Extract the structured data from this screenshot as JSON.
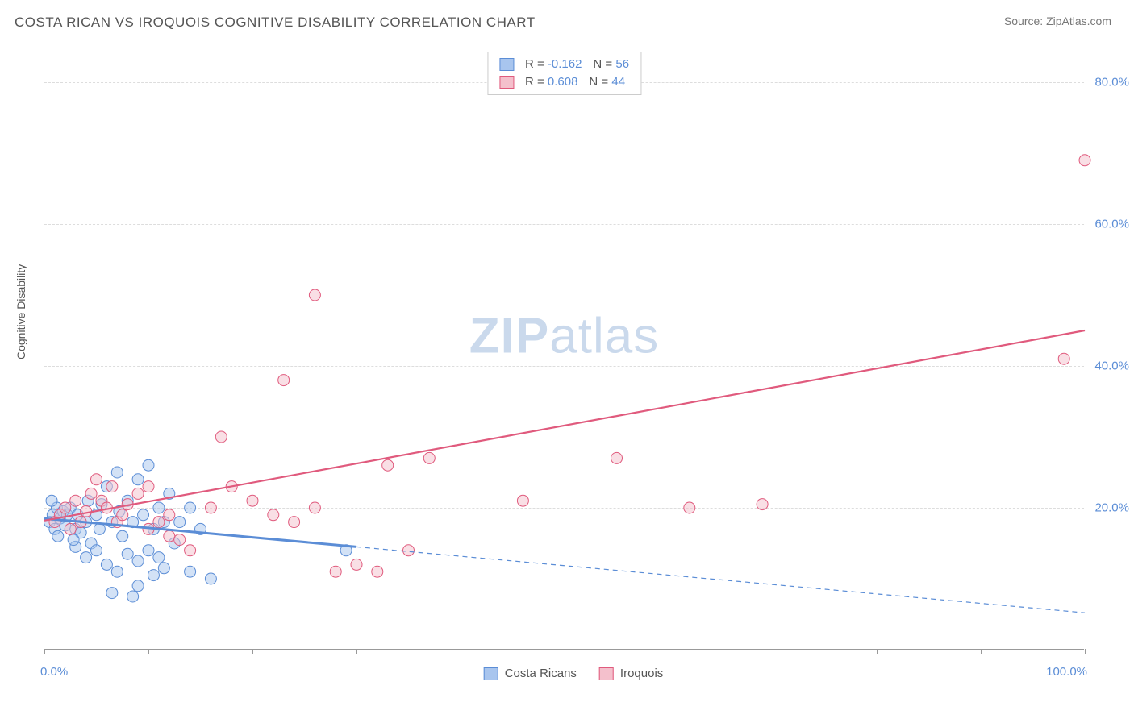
{
  "title": "COSTA RICAN VS IROQUOIS COGNITIVE DISABILITY CORRELATION CHART",
  "source": "Source: ZipAtlas.com",
  "y_axis_label": "Cognitive Disability",
  "watermark": {
    "bold": "ZIP",
    "rest": "atlas"
  },
  "chart": {
    "type": "scatter",
    "xlim": [
      0,
      100
    ],
    "ylim": [
      0,
      85
    ],
    "y_gridlines": [
      20,
      40,
      60,
      80
    ],
    "y_tick_labels": [
      "20.0%",
      "40.0%",
      "60.0%",
      "80.0%"
    ],
    "x_tick_labels": {
      "min": "0.0%",
      "max": "100.0%"
    },
    "x_tick_positions": [
      0,
      10,
      20,
      30,
      40,
      50,
      60,
      70,
      80,
      90,
      100
    ],
    "grid_color": "#dddddd",
    "axis_color": "#999999",
    "background_color": "#ffffff",
    "marker_radius": 7,
    "marker_opacity": 0.5,
    "series": [
      {
        "name": "Costa Ricans",
        "color_fill": "#a8c5ee",
        "color_stroke": "#5b8dd6",
        "r": -0.162,
        "n": 56,
        "regression": {
          "solid": {
            "x1": 0,
            "y1": 18.5,
            "x2": 30,
            "y2": 14.5
          },
          "dashed": {
            "x1": 30,
            "y1": 14.5,
            "x2": 100,
            "y2": 5.2
          },
          "line_width_solid": 3,
          "line_width_dashed": 1.2
        },
        "points": [
          [
            0.5,
            18
          ],
          [
            0.8,
            19
          ],
          [
            1,
            17
          ],
          [
            1.2,
            20
          ],
          [
            1.5,
            18.5
          ],
          [
            1.8,
            19.5
          ],
          [
            2,
            17.5
          ],
          [
            0.7,
            21
          ],
          [
            1.3,
            16
          ],
          [
            2.2,
            19
          ],
          [
            2.5,
            20
          ],
          [
            3,
            17
          ],
          [
            3.2,
            19
          ],
          [
            3.5,
            16.5
          ],
          [
            4,
            18
          ],
          [
            4.2,
            21
          ],
          [
            4.5,
            15
          ],
          [
            5,
            19
          ],
          [
            5.3,
            17
          ],
          [
            5.5,
            20.5
          ],
          [
            6,
            23
          ],
          [
            6.5,
            18
          ],
          [
            7,
            25
          ],
          [
            7.2,
            19.5
          ],
          [
            7.5,
            16
          ],
          [
            8,
            21
          ],
          [
            8.5,
            18
          ],
          [
            9,
            24
          ],
          [
            9.5,
            19
          ],
          [
            10,
            26
          ],
          [
            10.5,
            17
          ],
          [
            11,
            20
          ],
          [
            11.5,
            18
          ],
          [
            12,
            22
          ],
          [
            4,
            13
          ],
          [
            5,
            14
          ],
          [
            6,
            12
          ],
          [
            7,
            11
          ],
          [
            8,
            13.5
          ],
          [
            9,
            12.5
          ],
          [
            10,
            14
          ],
          [
            11,
            13
          ],
          [
            3,
            14.5
          ],
          [
            2.8,
            15.5
          ],
          [
            14,
            11
          ],
          [
            16,
            10
          ],
          [
            6.5,
            8
          ],
          [
            8.5,
            7.5
          ],
          [
            13,
            18
          ],
          [
            14,
            20
          ],
          [
            15,
            17
          ],
          [
            12.5,
            15
          ],
          [
            9,
            9
          ],
          [
            10.5,
            10.5
          ],
          [
            11.5,
            11.5
          ],
          [
            29,
            14
          ]
        ]
      },
      {
        "name": "Iroquois",
        "color_fill": "#f4c0cc",
        "color_stroke": "#e05a7d",
        "r": 0.608,
        "n": 44,
        "regression": {
          "solid": {
            "x1": 0,
            "y1": 18.2,
            "x2": 100,
            "y2": 45
          },
          "line_width_solid": 2.2
        },
        "points": [
          [
            1,
            18
          ],
          [
            1.5,
            19
          ],
          [
            2,
            20
          ],
          [
            2.5,
            17
          ],
          [
            3,
            21
          ],
          [
            3.5,
            18
          ],
          [
            4,
            19.5
          ],
          [
            4.5,
            22
          ],
          [
            5,
            24
          ],
          [
            5.5,
            21
          ],
          [
            6,
            20
          ],
          [
            6.5,
            23
          ],
          [
            7,
            18
          ],
          [
            7.5,
            19
          ],
          [
            8,
            20.5
          ],
          [
            9,
            22
          ],
          [
            10,
            17
          ],
          [
            11,
            18
          ],
          [
            12,
            16
          ],
          [
            13,
            15.5
          ],
          [
            14,
            14
          ],
          [
            16,
            20
          ],
          [
            18,
            23
          ],
          [
            17,
            30
          ],
          [
            23,
            38
          ],
          [
            26,
            50
          ],
          [
            20,
            21
          ],
          [
            22,
            19
          ],
          [
            24,
            18
          ],
          [
            26,
            20
          ],
          [
            28,
            11
          ],
          [
            30,
            12
          ],
          [
            32,
            11
          ],
          [
            33,
            26
          ],
          [
            35,
            14
          ],
          [
            37,
            27
          ],
          [
            46,
            21
          ],
          [
            55,
            27
          ],
          [
            62,
            20
          ],
          [
            69,
            20.5
          ],
          [
            98,
            41
          ],
          [
            100,
            69
          ],
          [
            10,
            23
          ],
          [
            12,
            19
          ]
        ]
      }
    ]
  },
  "legend_top": {
    "rows": [
      {
        "swatch_fill": "#a8c5ee",
        "swatch_stroke": "#5b8dd6",
        "r_label": "R =",
        "r_val": "-0.162",
        "n_label": "N =",
        "n_val": "56"
      },
      {
        "swatch_fill": "#f4c0cc",
        "swatch_stroke": "#e05a7d",
        "r_label": "R =",
        "r_val": "0.608",
        "n_label": "N =",
        "n_val": "44"
      }
    ]
  },
  "legend_bottom": {
    "items": [
      {
        "swatch_fill": "#a8c5ee",
        "swatch_stroke": "#5b8dd6",
        "label": "Costa Ricans"
      },
      {
        "swatch_fill": "#f4c0cc",
        "swatch_stroke": "#e05a7d",
        "label": "Iroquois"
      }
    ]
  }
}
